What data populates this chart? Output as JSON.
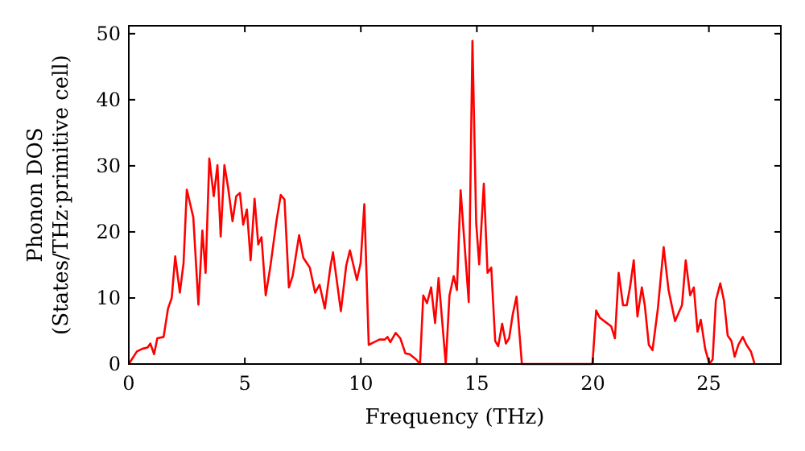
{
  "chart_data": {
    "type": "line",
    "xlabel": "Frequency (THz)",
    "ylabel": "Phonon DOS\n(States/THz·primitive cell)",
    "xlim": [
      0,
      28.1
    ],
    "ylim": [
      0,
      51.2
    ],
    "xticks": [
      0,
      5,
      10,
      15,
      20,
      25
    ],
    "yticks": [
      0,
      10,
      20,
      30,
      40,
      50
    ],
    "grid": false,
    "marker": "none",
    "line_style": "solid",
    "x": [
      0,
      0.35,
      0.58,
      0.81,
      0.93,
      1.09,
      1.23,
      1.5,
      1.69,
      1.85,
      2.0,
      2.2,
      2.36,
      2.5,
      2.78,
      3.0,
      3.17,
      3.31,
      3.47,
      3.66,
      3.82,
      3.96,
      4.12,
      4.28,
      4.47,
      4.63,
      4.79,
      4.93,
      5.09,
      5.25,
      5.42,
      5.58,
      5.72,
      5.9,
      6.09,
      6.37,
      6.55,
      6.71,
      6.9,
      7.06,
      7.34,
      7.52,
      7.8,
      8.03,
      8.22,
      8.45,
      8.68,
      8.8,
      9.14,
      9.37,
      9.53,
      9.83,
      9.99,
      10.15,
      10.34,
      10.57,
      10.8,
      11.03,
      11.15,
      11.27,
      11.5,
      11.7,
      11.92,
      12.1,
      12.38,
      12.55,
      12.69,
      12.85,
      13.03,
      13.2,
      13.35,
      13.66,
      13.82,
      14.0,
      14.14,
      14.3,
      14.65,
      14.81,
      14.97,
      15.1,
      15.3,
      15.46,
      15.62,
      15.79,
      15.92,
      16.09,
      16.25,
      16.39,
      16.55,
      16.71,
      16.94,
      19.98,
      20.14,
      20.3,
      20.6,
      20.79,
      20.95,
      21.11,
      21.3,
      21.46,
      21.6,
      21.76,
      21.92,
      22.11,
      22.24,
      22.41,
      22.57,
      22.8,
      23.05,
      23.26,
      23.54,
      23.84,
      24.0,
      24.19,
      24.35,
      24.51,
      24.65,
      24.84,
      25.02,
      25.16,
      25.3,
      25.49,
      25.65,
      25.81,
      25.97,
      26.11,
      26.27,
      26.46,
      26.62,
      26.81,
      26.97
    ],
    "series": [
      {
        "color": "#ff0000",
        "values": [
          0,
          1.9,
          2.3,
          2.5,
          3.1,
          1.5,
          3.9,
          4.1,
          8.4,
          10,
          16.3,
          10.8,
          15.3,
          26.4,
          22.2,
          9,
          20.2,
          13.8,
          31.1,
          25.4,
          30.1,
          19.3,
          30.1,
          26.7,
          21.6,
          25.4,
          25.9,
          21.1,
          23.4,
          15.7,
          25,
          18.1,
          19.2,
          10.4,
          14.5,
          21.8,
          25.6,
          24.9,
          11.6,
          13.3,
          19.5,
          16.1,
          14.6,
          10.8,
          12,
          8.4,
          14.5,
          16.9,
          8,
          14.9,
          17.2,
          12.7,
          15.3,
          24.2,
          2.9,
          3.3,
          3.7,
          3.7,
          4.1,
          3.3,
          4.7,
          3.9,
          1.6,
          1.5,
          0.7,
          0,
          10.4,
          9.2,
          11.6,
          6.2,
          13,
          0,
          10.4,
          13.3,
          11.2,
          26.3,
          9.4,
          48.9,
          21.4,
          15.1,
          27.3,
          13.8,
          14.6,
          3.5,
          2.7,
          6.1,
          3.1,
          3.9,
          7.6,
          10.2,
          0,
          0,
          8.1,
          7,
          6.2,
          5.7,
          3.9,
          13.8,
          8.9,
          8.9,
          11.6,
          15.7,
          7.2,
          11.6,
          8.8,
          2.9,
          2.1,
          8.4,
          17.7,
          11.2,
          6.5,
          8.9,
          15.7,
          10.4,
          11.6,
          4.9,
          6.7,
          2.3,
          0,
          0.7,
          9.6,
          12.2,
          9.6,
          4.3,
          3.5,
          1.1,
          2.9,
          4.1,
          2.9,
          1.9,
          0
        ]
      }
    ]
  }
}
